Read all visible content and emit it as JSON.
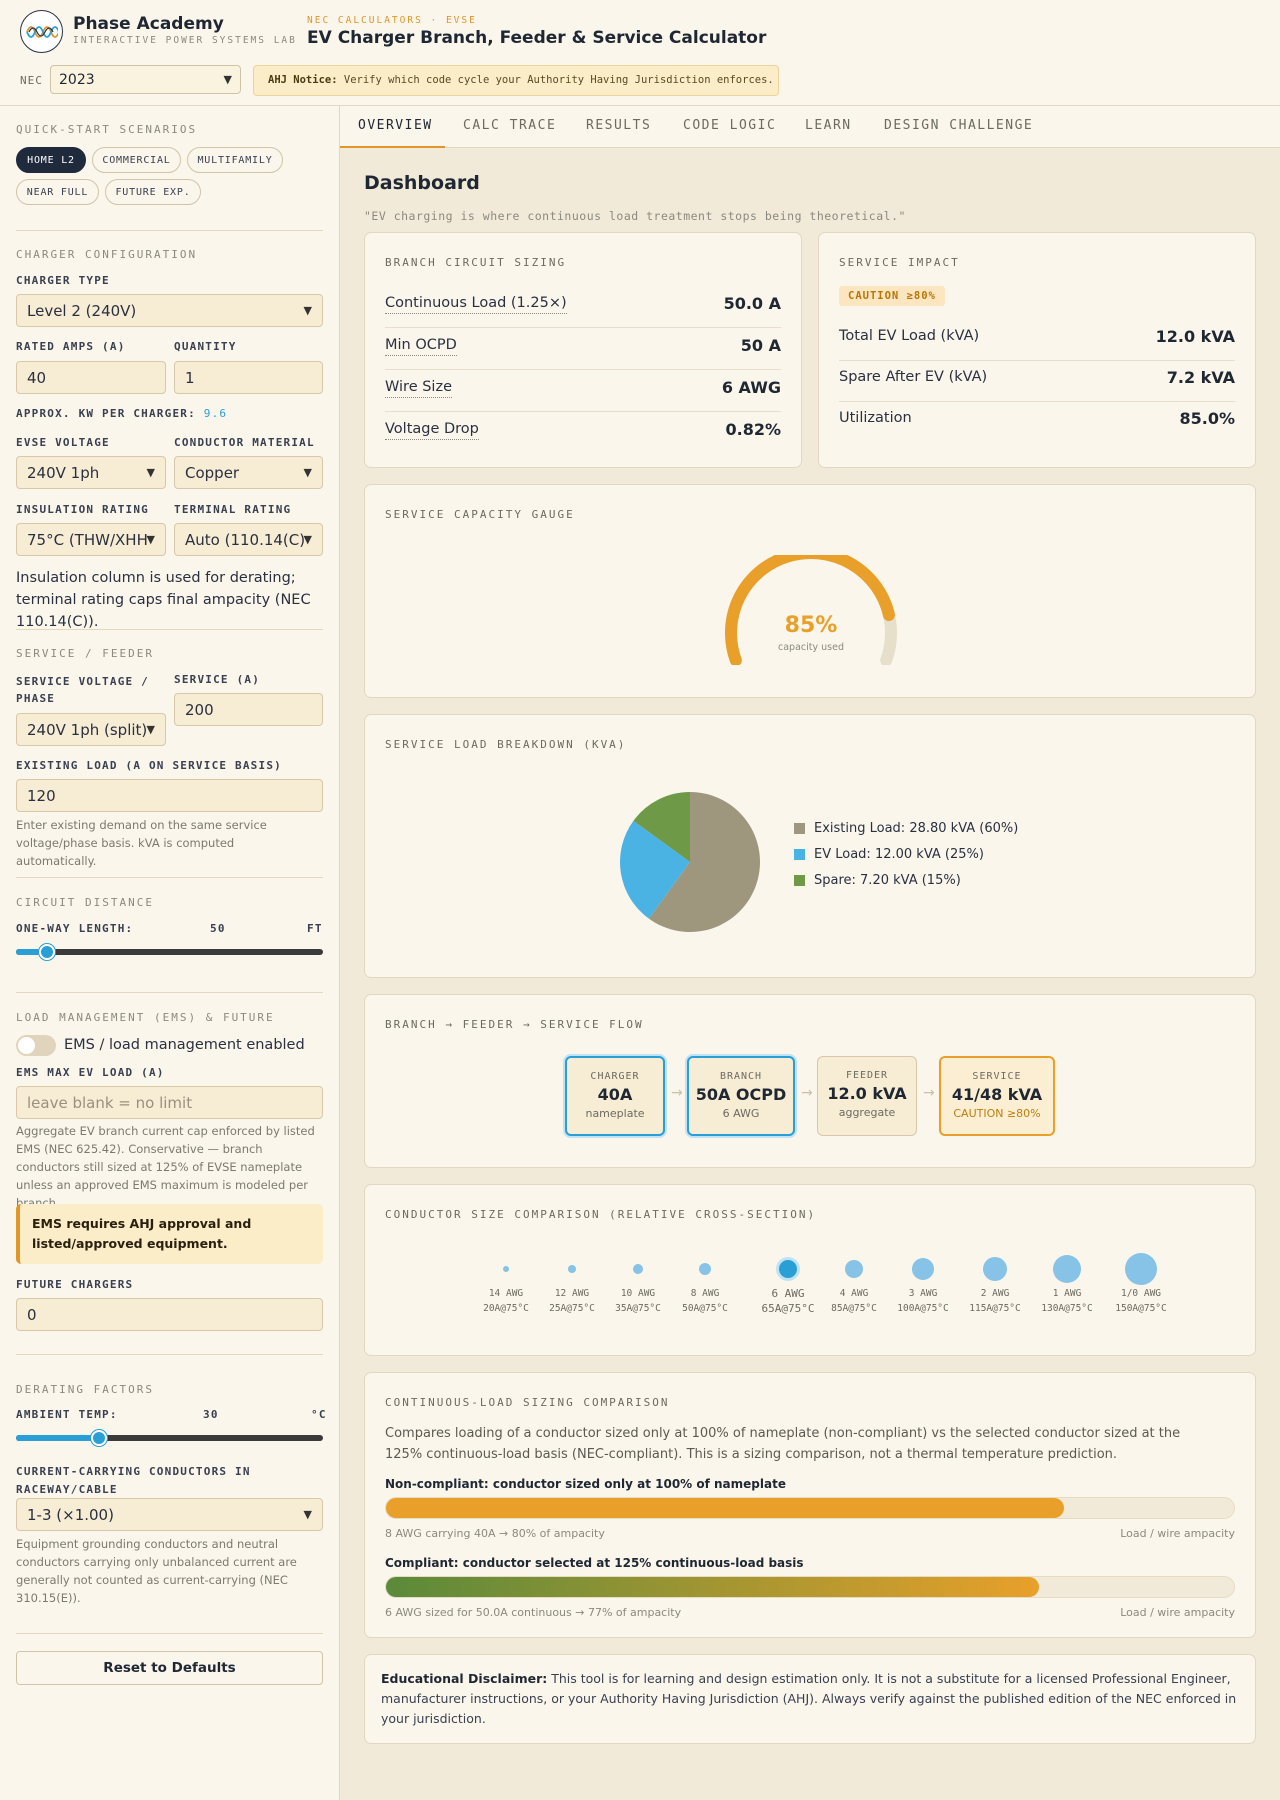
{
  "header": {
    "brand": "Phase Academy",
    "brand_sub": "INTERACTIVE POWER SYSTEMS LAB",
    "kicker": "NEC CALCULATORS · EVSE",
    "title": "EV Charger Branch, Feeder & Service Calculator",
    "nec_label": "NEC",
    "nec_value": "2023",
    "ahj_bold": "AHJ Notice:",
    "ahj_text": "Verify which code cycle your Authority Having Jurisdiction enforces."
  },
  "sidebar": {
    "quick_title": "QUICK-START SCENARIOS",
    "scenarios": [
      "HOME L2",
      "COMMERCIAL",
      "MULTIFAMILY",
      "NEAR FULL",
      "FUTURE EXP."
    ],
    "config_title": "CHARGER CONFIGURATION",
    "charger_type_label": "CHARGER TYPE",
    "charger_type": "Level 2 (240V)",
    "rated_amps_label": "RATED AMPS (A)",
    "rated_amps": "40",
    "quantity_label": "QUANTITY",
    "quantity": "1",
    "approx_kw_label": "APPROX. KW PER CHARGER:",
    "approx_kw": "9.6",
    "evse_voltage_label": "EVSE VOLTAGE",
    "evse_voltage": "240V 1ph",
    "conductor_label": "CONDUCTOR MATERIAL",
    "conductor": "Copper",
    "insulation_label": "INSULATION RATING",
    "insulation": "75°C (THW/XHH",
    "terminal_label": "TERMINAL RATING",
    "terminal": "Auto (110.14(C))",
    "insulation_note": "Insulation column is used for derating; terminal rating caps final ampacity (NEC 110.14(C)).",
    "service_title": "SERVICE / FEEDER",
    "service_voltage_label": "SERVICE VOLTAGE / PHASE",
    "service_voltage": "240V 1ph (split)",
    "service_amps_label": "SERVICE (A)",
    "service_amps": "200",
    "existing_label": "EXISTING LOAD (A ON SERVICE BASIS)",
    "existing": "120",
    "existing_hint": "Enter existing demand on the same service voltage/phase basis. kVA is computed automatically.",
    "distance_title": "CIRCUIT DISTANCE",
    "length_label": "ONE-WAY LENGTH:",
    "length_value": "50",
    "length_unit": "FT",
    "length_fraction": 0.1,
    "ems_title": "LOAD MANAGEMENT (EMS) & FUTURE",
    "ems_toggle_label": "EMS / load management enabled",
    "ems_max_label": "EMS MAX EV LOAD (A)",
    "ems_max_placeholder": "leave blank = no limit",
    "ems_hint": "Aggregate EV branch current cap enforced by listed EMS (NEC 625.42). Conservative — branch conductors still sized at 125% of EVSE nameplate unless an approved EMS maximum is modeled per branch.",
    "ems_warning": "EMS requires AHJ approval and listed/approved equipment.",
    "future_label": "FUTURE CHARGERS",
    "future": "0",
    "derating_title": "DERATING FACTORS",
    "ambient_label": "AMBIENT TEMP:",
    "ambient_value": "30",
    "ambient_unit": "°C",
    "ambient_fraction": 0.27,
    "ccc_label": "CURRENT-CARRYING CONDUCTORS IN RACEWAY/CABLE",
    "ccc": "1-3 (×1.00)",
    "ccc_hint": "Equipment grounding conductors and neutral conductors carrying only unbalanced current are generally not counted as current-carrying (NEC 310.15(E)).",
    "reset": "Reset to Defaults"
  },
  "tabs": [
    "OVERVIEW",
    "CALC TRACE",
    "RESULTS",
    "CODE LOGIC",
    "LEARN",
    "DESIGN CHALLENGE"
  ],
  "dashboard": {
    "title": "Dashboard",
    "quote": "\"EV charging is where continuous load treatment stops being theoretical.\"",
    "branch_title": "BRANCH CIRCUIT SIZING",
    "branch_rows": [
      {
        "label": "Continuous Load (1.25×)",
        "value": "50.0 A"
      },
      {
        "label": "Min OCPD",
        "value": "50 A"
      },
      {
        "label": "Wire Size",
        "value": "6 AWG"
      },
      {
        "label": "Voltage Drop",
        "value": "0.82%"
      }
    ],
    "service_title": "SERVICE IMPACT",
    "caution_badge": "CAUTION ≥80%",
    "service_rows": [
      {
        "label": "Total EV Load (kVA)",
        "value": "12.0 kVA"
      },
      {
        "label": "Spare After EV (kVA)",
        "value": "7.2 kVA"
      },
      {
        "label": "Utilization",
        "value": "85.0%"
      }
    ],
    "gauge_title": "SERVICE CAPACITY GAUGE",
    "gauge_value": "85%",
    "gauge_fraction": 0.85,
    "gauge_sub": "capacity used",
    "breakdown_title": "SERVICE LOAD BREAKDOWN (KVA)",
    "flow_title": "BRANCH → FEEDER → SERVICE FLOW",
    "flow": [
      {
        "label": "CHARGER",
        "value": "40A",
        "sub": "nameplate"
      },
      {
        "label": "BRANCH",
        "value": "50A OCPD",
        "sub": "6 AWG"
      },
      {
        "label": "FEEDER",
        "value": "12.0 kVA",
        "sub": "aggregate"
      },
      {
        "label": "SERVICE",
        "value": "41/48 kVA",
        "sub": "CAUTION ≥80%"
      }
    ],
    "conductor_title": "CONDUCTOR SIZE COMPARISON (RELATIVE CROSS-SECTION)",
    "conductors": [
      {
        "size": "14 AWG",
        "amp": "20A@75°C"
      },
      {
        "size": "12 AWG",
        "amp": "25A@75°C"
      },
      {
        "size": "10 AWG",
        "amp": "35A@75°C"
      },
      {
        "size": "8 AWG",
        "amp": "50A@75°C"
      },
      {
        "size": "6 AWG",
        "amp": "65A@75°C"
      },
      {
        "size": "4 AWG",
        "amp": "85A@75°C"
      },
      {
        "size": "3 AWG",
        "amp": "100A@75°C"
      },
      {
        "size": "2 AWG",
        "amp": "115A@75°C"
      },
      {
        "size": "1 AWG",
        "amp": "130A@75°C"
      },
      {
        "size": "1/0 AWG",
        "amp": "150A@75°C"
      }
    ],
    "cont_title": "CONTINUOUS-LOAD SIZING COMPARISON",
    "cont_desc": "Compares loading of a conductor sized only at 100% of nameplate (non-compliant) vs the selected conductor sized at the 125% continuous-load basis (NEC-compliant). This is a sizing comparison, not a thermal temperature prediction.",
    "bar1_title": "Non-compliant: conductor sized only at 100% of nameplate",
    "bar1_left": "8 AWG carrying 40A → 80% of ampacity",
    "bar1_right": "Load / wire ampacity",
    "bar1_fraction": 0.8,
    "bar2_title": "Compliant: conductor selected at 125% continuous-load basis",
    "bar2_left": "6 AWG sized for 50.0A continuous → 77% of ampacity",
    "bar2_right": "Load / wire ampacity",
    "bar2_fraction": 0.77,
    "disclaimer_bold": "Educational Disclaimer:",
    "disclaimer": "This tool is for learning and design estimation only. It is not a substitute for a licensed Professional Engineer, manufacturer instructions, or your Authority Having Jurisdiction (AHJ). Always verify against the published edition of the NEC enforced in your jurisdiction."
  },
  "chart_data": {
    "type": "pie",
    "title": "SERVICE LOAD BREAKDOWN (KVA)",
    "categories": [
      "Existing Load",
      "EV Load",
      "Spare"
    ],
    "values": [
      28.8,
      12.0,
      7.2
    ],
    "percents": [
      60,
      25,
      15
    ],
    "legend": [
      "Existing Load: 28.80 kVA (60%)",
      "EV Load: 12.00 kVA (25%)",
      "Spare: 7.20 kVA (15%)"
    ],
    "colors": [
      "#9e977e",
      "#4ab3e3",
      "#6e9a48"
    ],
    "legend_position": "right"
  }
}
